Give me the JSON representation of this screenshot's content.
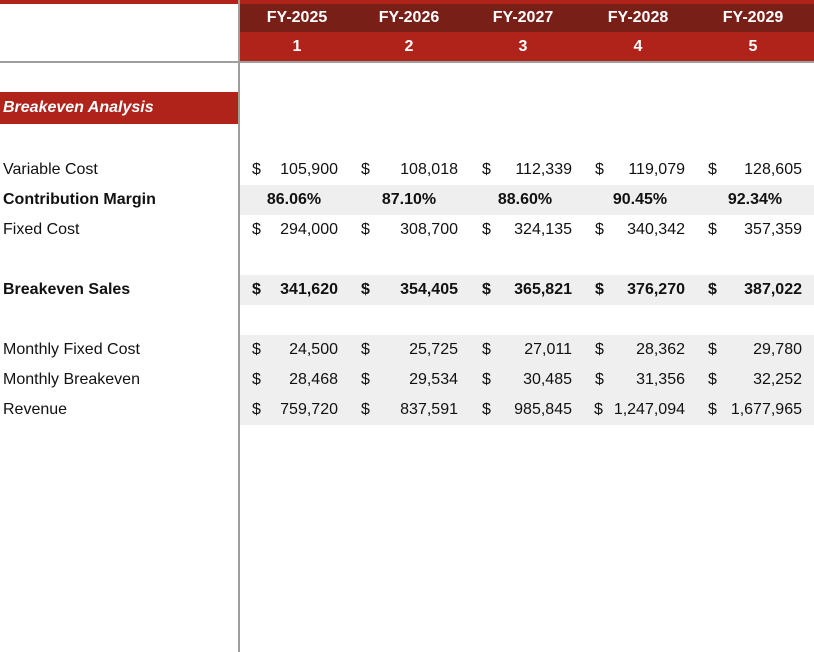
{
  "header": {
    "years": [
      "FY-2025",
      "FY-2026",
      "FY-2027",
      "FY-2028",
      "FY-2029"
    ],
    "numbers": [
      "1",
      "2",
      "3",
      "4",
      "5"
    ]
  },
  "section_title": "Breakeven Analysis",
  "rows": {
    "variable_cost": {
      "label": "Variable Cost",
      "values": [
        "105,900",
        "108,018",
        "112,339",
        "119,079",
        "128,605"
      ]
    },
    "contribution_margin": {
      "label": "Contribution Margin",
      "values": [
        "86.06%",
        "87.10%",
        "88.60%",
        "90.45%",
        "92.34%"
      ]
    },
    "fixed_cost": {
      "label": "Fixed Cost",
      "values": [
        "294,000",
        "308,700",
        "324,135",
        "340,342",
        "357,359"
      ]
    },
    "breakeven_sales": {
      "label": "Breakeven Sales",
      "values": [
        "341,620",
        "354,405",
        "365,821",
        "376,270",
        "387,022"
      ]
    },
    "monthly_fixed_cost": {
      "label": "Monthly Fixed Cost",
      "values": [
        "24,500",
        "25,725",
        "27,011",
        "28,362",
        "29,780"
      ]
    },
    "monthly_breakeven": {
      "label": "Monthly Breakeven",
      "values": [
        "28,468",
        "29,534",
        "30,485",
        "31,356",
        "32,252"
      ]
    },
    "revenue": {
      "label": "Revenue",
      "values": [
        "759,720",
        "837,591",
        "985,845",
        "1,247,094",
        "1,677,965"
      ]
    }
  },
  "currency_symbol": "$",
  "colors": {
    "header_dark": "#781f17",
    "header_red": "#b0231b",
    "shade": "#efefef",
    "grid": "#9e9e9e"
  }
}
